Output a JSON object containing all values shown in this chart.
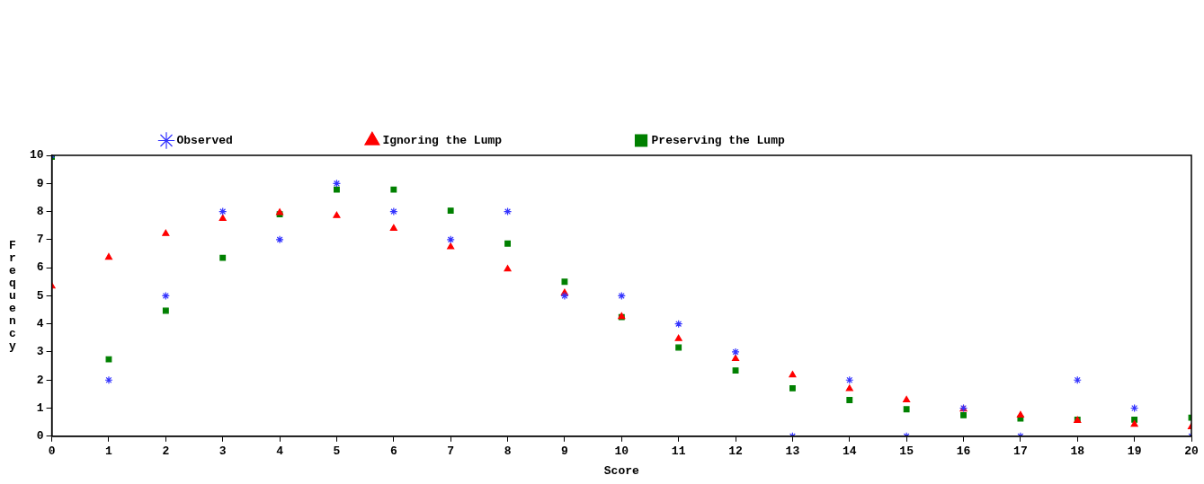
{
  "chart_data": {
    "type": "scatter",
    "xlabel": "Score",
    "ylabel": "Frequency",
    "x": [
      0,
      1,
      2,
      3,
      4,
      5,
      6,
      7,
      8,
      9,
      10,
      11,
      12,
      13,
      14,
      15,
      16,
      17,
      18,
      19,
      20
    ],
    "series": [
      {
        "name": "Observed",
        "color": "#3333ff",
        "marker": "cross",
        "values": [
          10,
          2,
          5,
          8,
          7,
          9,
          8,
          7,
          8,
          5,
          5,
          4,
          3,
          0,
          2,
          0,
          1,
          0,
          2,
          1,
          0
        ]
      },
      {
        "name": "Ignoring the Lump",
        "color": "#ff0000",
        "marker": "triangle",
        "values": [
          5.34,
          6.37,
          7.21,
          7.75,
          7.96,
          7.85,
          7.4,
          6.74,
          5.95,
          5.1,
          4.26,
          3.47,
          2.76,
          2.18,
          1.69,
          1.29,
          0.96,
          0.75,
          0.56,
          0.42,
          0.33
        ]
      },
      {
        "name": "Preserving the Lump",
        "color": "#008000",
        "marker": "square",
        "values": [
          9.95,
          2.74,
          4.47,
          6.35,
          7.9,
          8.78,
          8.78,
          8.03,
          6.86,
          5.5,
          4.24,
          3.16,
          2.34,
          1.71,
          1.29,
          0.96,
          0.75,
          0.63,
          0.59,
          0.59,
          0.66
        ]
      }
    ],
    "xlim": [
      0,
      20
    ],
    "xticks": [
      0,
      1,
      2,
      3,
      4,
      5,
      6,
      7,
      8,
      9,
      10,
      11,
      12,
      13,
      14,
      15,
      16,
      17,
      18,
      19,
      20
    ],
    "ylim": [
      0,
      10
    ],
    "yticks": [
      0,
      1,
      2,
      3,
      4,
      5,
      6,
      7,
      8,
      9,
      10
    ],
    "grid": false,
    "legend": "top"
  }
}
